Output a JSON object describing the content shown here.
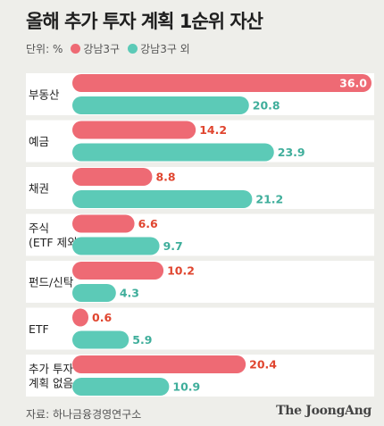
{
  "title": "올해 추가 투자 계획 1순위 자산",
  "unit_label": "단위: %",
  "source": "자료: 하나금융경영연구소",
  "brand": "The JoongAng",
  "colors": {
    "gangnam": "#ee6a74",
    "gangnam_label": "#e0452f",
    "other": "#5ccab7",
    "other_label": "#3fae9b",
    "band": "#ffffff"
  },
  "chart_data": {
    "type": "bar",
    "orientation": "horizontal",
    "categories": [
      "부동산",
      "예금",
      "채권",
      "주식\n(ETF 제외)",
      "펀드/신탁",
      "ETF",
      "추가 투자\n계획 없음"
    ],
    "series": [
      {
        "name": "강남3구",
        "values": [
          36.0,
          14.2,
          8.8,
          6.6,
          10.2,
          0.6,
          20.4
        ]
      },
      {
        "name": "강남3구 외",
        "values": [
          20.8,
          23.9,
          21.2,
          9.7,
          4.3,
          5.9,
          10.9
        ]
      }
    ],
    "value_labels": [
      [
        "36.0",
        "14.2",
        "8.8",
        "6.6",
        "10.2",
        "0.6",
        "20.4"
      ],
      [
        "20.8",
        "23.9",
        "21.2",
        "9.7",
        "4.3",
        "5.9",
        "10.9"
      ]
    ],
    "xlim": [
      0,
      36
    ],
    "unit": "%"
  }
}
